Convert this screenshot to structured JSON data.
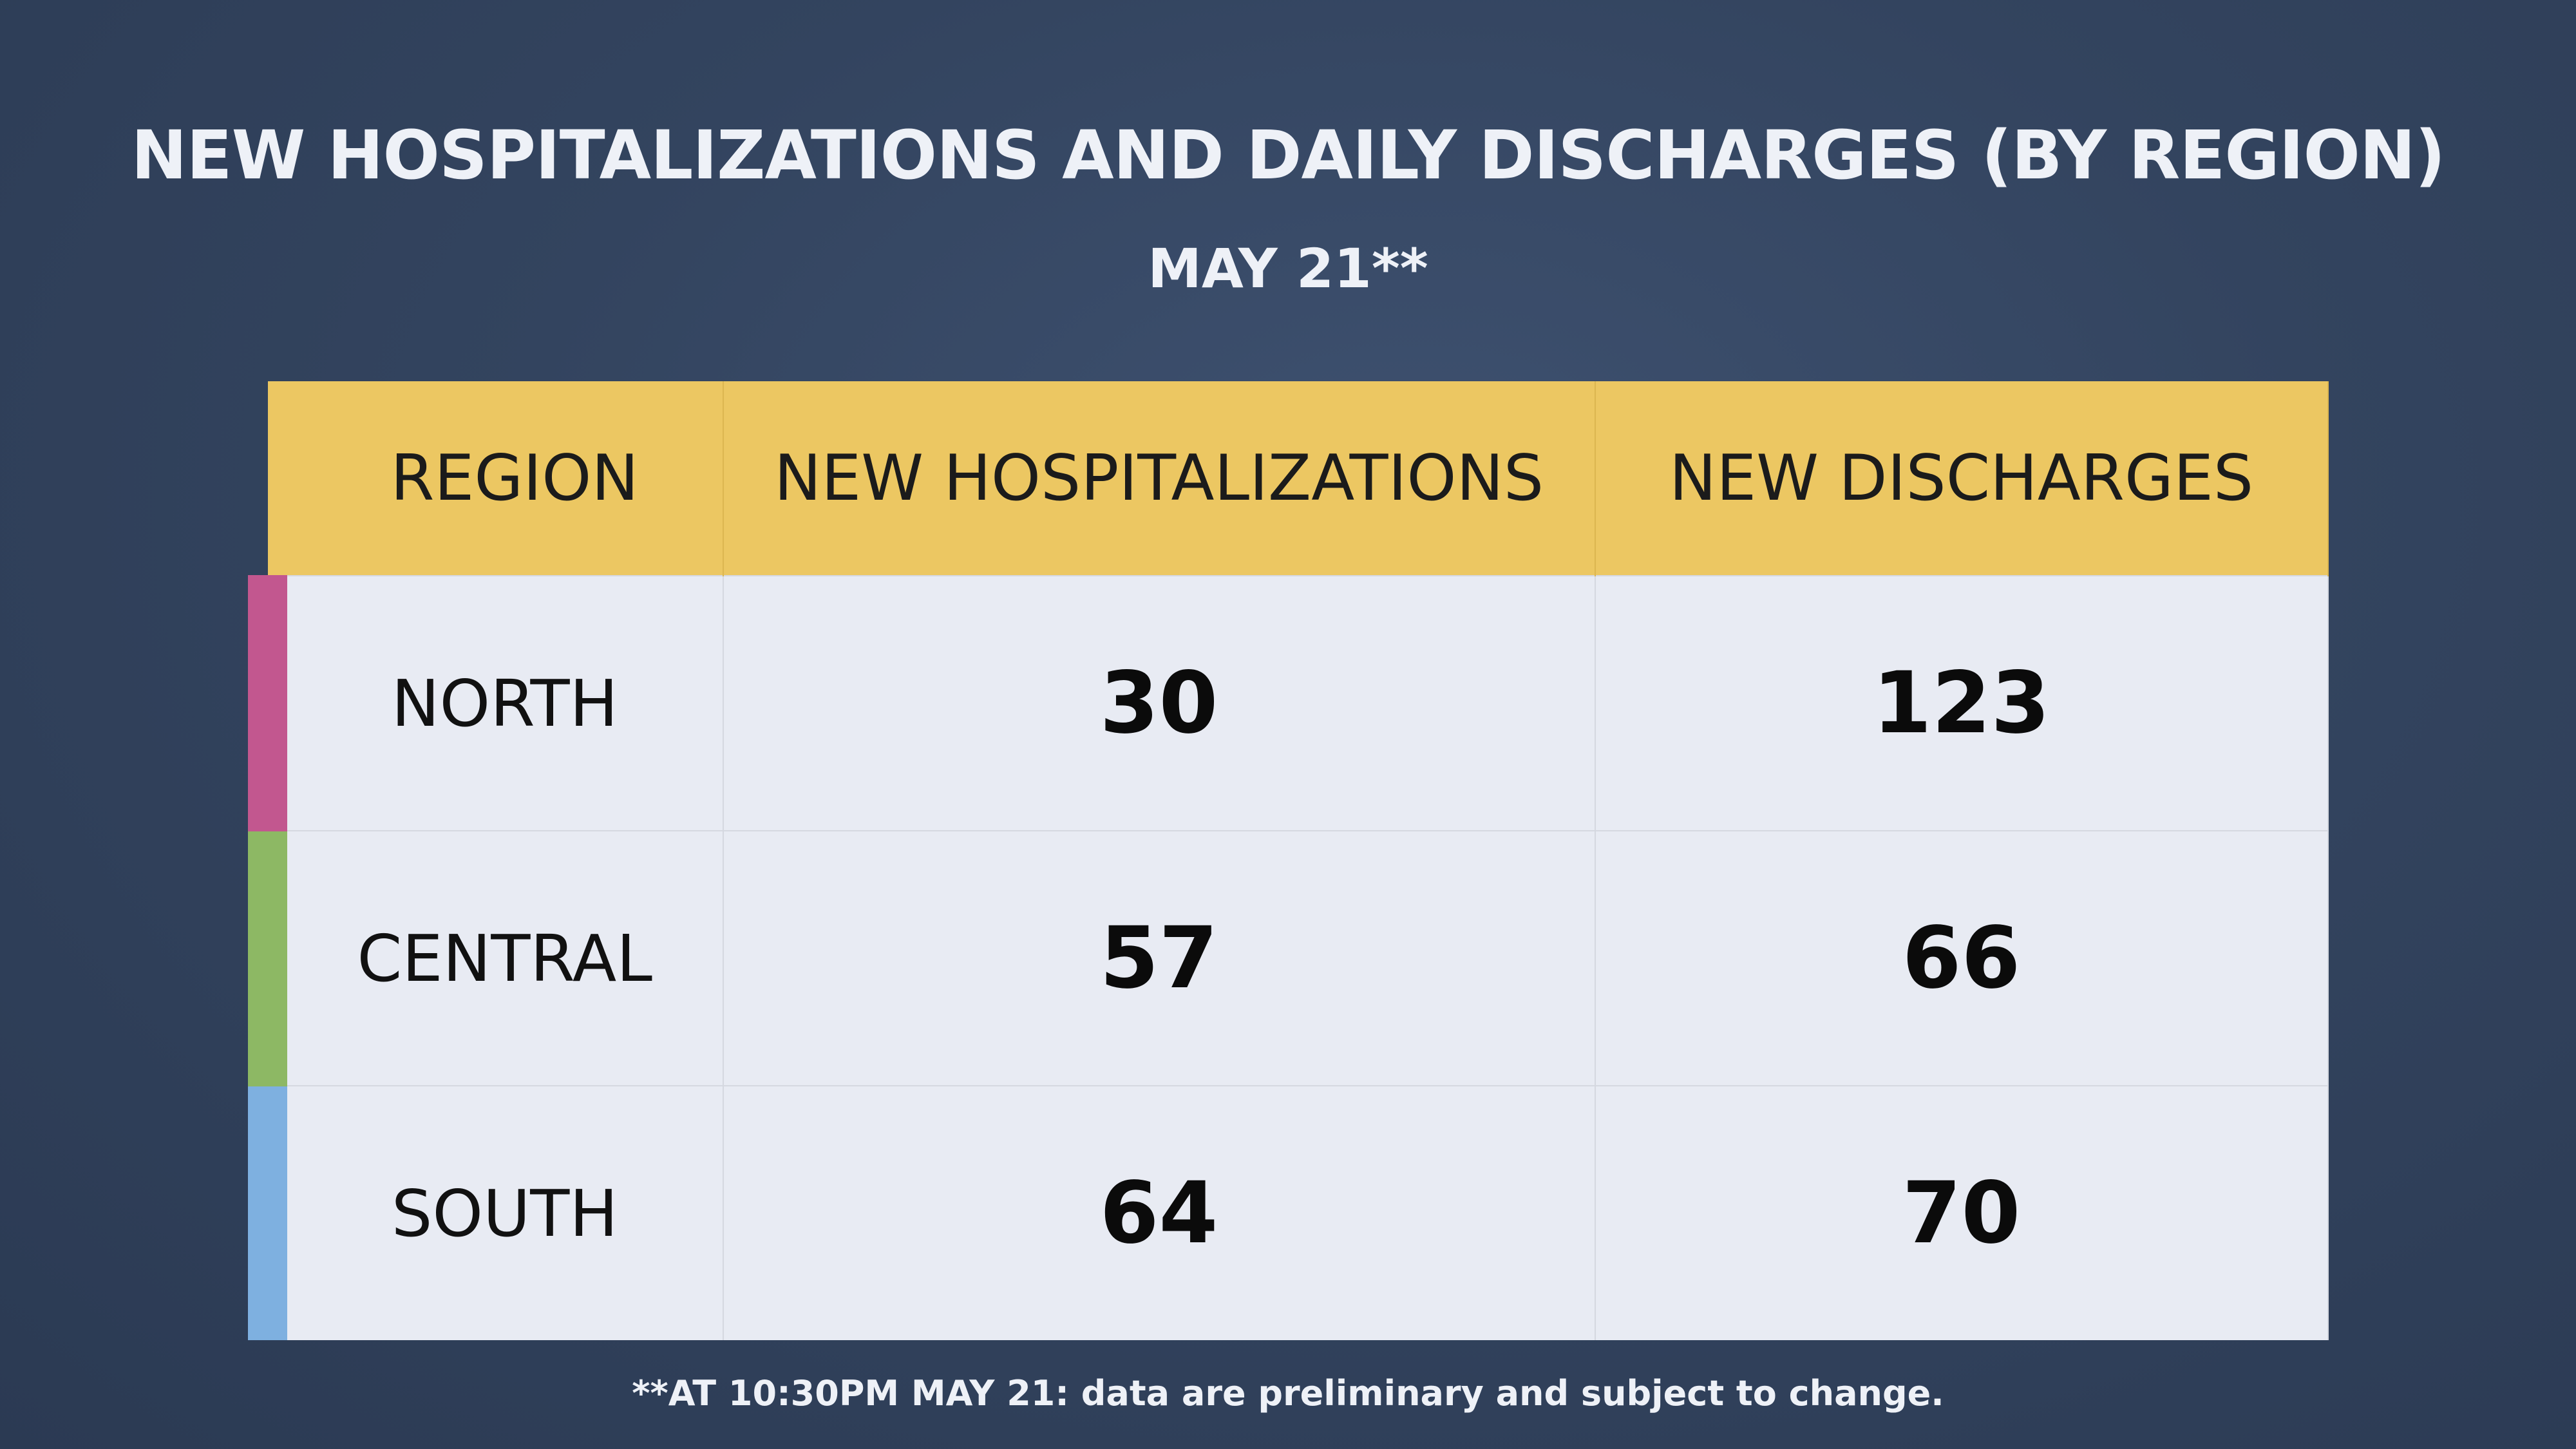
{
  "header": {
    "title": "NEW HOSPITALIZATIONS AND DAILY DISCHARGES (BY REGION)",
    "subtitle": "MAY 21**"
  },
  "table": {
    "columns": [
      "REGION",
      "NEW HOSPITALIZATIONS",
      "NEW DISCHARGES"
    ],
    "rows": [
      [
        "NORTH",
        30,
        123
      ],
      [
        "CENTRAL",
        57,
        66
      ],
      [
        "SOUTH",
        64,
        70
      ]
    ]
  },
  "footnote": "**AT 10:30PM MAY 21: data are preliminary and subject to change."
}
